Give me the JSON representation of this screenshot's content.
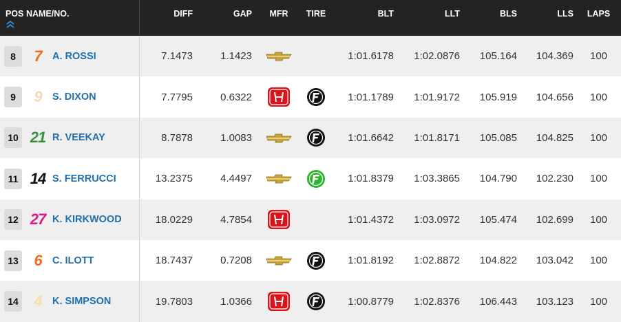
{
  "header": [
    "POS",
    "NAME/NO.",
    "DIFF",
    "GAP",
    "MFR",
    "TIRE",
    "BLT",
    "LLT",
    "BLS",
    "LLS",
    "LAPS"
  ],
  "rows": [
    {
      "pos": "8",
      "number": "7",
      "name": "A. ROSSI",
      "diff": "7.1473",
      "gap": "1.1423",
      "blt": "1:01.6178",
      "llt": "1:02.0876",
      "bls": "105.164",
      "lls": "104.369",
      "laps": "100"
    },
    {
      "pos": "9",
      "number": "9",
      "name": "S. DIXON",
      "diff": "7.7795",
      "gap": "0.6322",
      "blt": "1:01.1789",
      "llt": "1:01.9172",
      "bls": "105.919",
      "lls": "104.656",
      "laps": "100"
    },
    {
      "pos": "10",
      "number": "21",
      "name": "R. VEEKAY",
      "diff": "8.7878",
      "gap": "1.0083",
      "blt": "1:01.6642",
      "llt": "1:01.8171",
      "bls": "105.085",
      "lls": "104.825",
      "laps": "100"
    },
    {
      "pos": "11",
      "number": "14",
      "name": "S. FERRUCCI",
      "diff": "13.2375",
      "gap": "4.4497",
      "blt": "1:01.8379",
      "llt": "1:03.3865",
      "bls": "104.790",
      "lls": "102.230",
      "laps": "100"
    },
    {
      "pos": "12",
      "number": "27",
      "name": "K. KIRKWOOD",
      "diff": "18.0229",
      "gap": "4.7854",
      "blt": "1:01.4372",
      "llt": "1:03.0972",
      "bls": "105.474",
      "lls": "102.699",
      "laps": "100"
    },
    {
      "pos": "13",
      "number": "6",
      "name": "C. ILOTT",
      "diff": "18.7437",
      "gap": "0.7208",
      "blt": "1:01.8192",
      "llt": "1:02.8872",
      "bls": "104.822",
      "lls": "103.042",
      "laps": "100"
    },
    {
      "pos": "14",
      "number": "4",
      "name": "K. SIMPSON",
      "diff": "19.7803",
      "gap": "1.0366",
      "blt": "1:00.8779",
      "llt": "1:02.8376",
      "bls": "106.443",
      "lls": "103.123",
      "laps": "100"
    }
  ]
}
